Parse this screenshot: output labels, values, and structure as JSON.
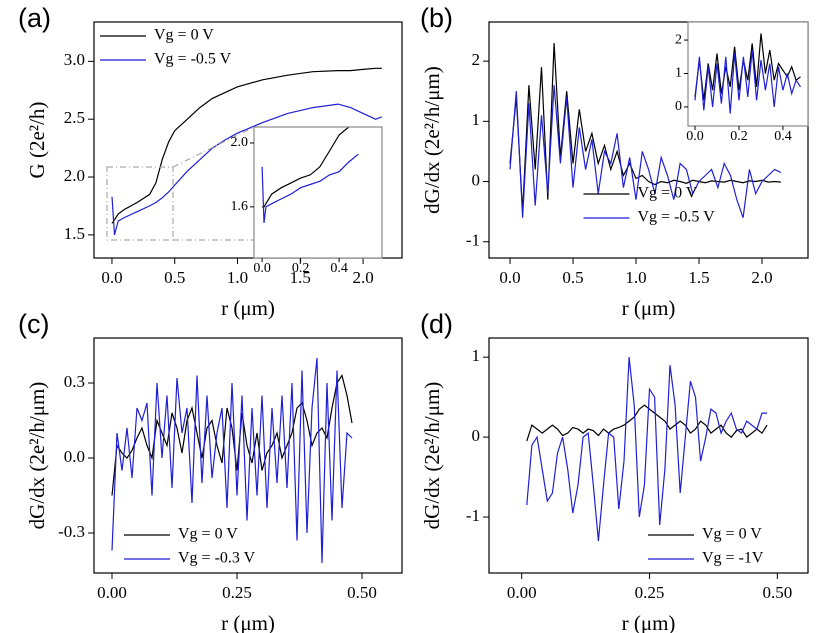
{
  "chart_data": [
    {
      "type": "line",
      "label": "(a)",
      "xlabel": "r (μm)",
      "ylabel": "G (2e²/h)",
      "xlim": [
        -0.143,
        2.31
      ],
      "ylim": [
        1.3,
        3.34
      ],
      "xticks": [
        {
          "value": 0,
          "label": "0.0"
        },
        0.5,
        {
          "value": 1,
          "label": "1.0"
        },
        1.5,
        {
          "value": 2,
          "label": "2.0"
        }
      ],
      "yticks": [
        1.5,
        {
          "value": 2,
          "label": "2.0"
        },
        2.5,
        {
          "value": 3,
          "label": "3.0"
        }
      ],
      "legend": "upper left",
      "x": [
        0,
        0.02,
        0.05,
        0.1,
        0.2,
        0.3,
        0.35,
        0.4,
        0.45,
        0.5,
        0.6,
        0.7,
        0.8,
        0.9,
        1.0,
        1.2,
        1.4,
        1.6,
        1.8,
        1.9,
        2.0,
        2.1,
        2.15
      ],
      "series": [
        {
          "name": "Vg = 0 V",
          "color": "#000000",
          "values": [
            1.6,
            1.63,
            1.68,
            1.72,
            1.78,
            1.85,
            1.95,
            2.15,
            2.3,
            2.4,
            2.5,
            2.6,
            2.68,
            2.73,
            2.78,
            2.84,
            2.88,
            2.91,
            2.92,
            2.92,
            2.93,
            2.94,
            2.94
          ]
        },
        {
          "name": "Vg = -0.5 V",
          "color": "#1f1fd6",
          "values": [
            1.83,
            1.5,
            1.62,
            1.65,
            1.7,
            1.75,
            1.78,
            1.82,
            1.87,
            1.93,
            2.05,
            2.15,
            2.25,
            2.32,
            2.38,
            2.47,
            2.55,
            2.6,
            2.63,
            2.6,
            2.55,
            2.5,
            2.52
          ]
        }
      ]
    },
    {
      "type": "line",
      "xlim": [
        -0.042,
        0.623
      ],
      "ylim": [
        1.28,
        2.1
      ],
      "xticks": [
        {
          "value": 0,
          "label": "0.0"
        },
        0.2,
        0.4
      ],
      "yticks": [
        1.6,
        {
          "value": 2,
          "label": "2.0"
        }
      ],
      "x": [
        0,
        0.01,
        0.02,
        0.05,
        0.1,
        0.15,
        0.2,
        0.25,
        0.3,
        0.35,
        0.4,
        0.45,
        0.5
      ],
      "series": [
        {
          "color": "#000000",
          "values": [
            1.6,
            1.6,
            1.62,
            1.68,
            1.72,
            1.75,
            1.78,
            1.8,
            1.85,
            1.95,
            2.05,
            2.1,
            2.12
          ]
        },
        {
          "color": "#1f1fd6",
          "values": [
            1.85,
            1.5,
            1.6,
            1.62,
            1.65,
            1.68,
            1.72,
            1.74,
            1.76,
            1.8,
            1.82,
            1.88,
            1.93
          ]
        }
      ]
    },
    {
      "type": "line",
      "label": "(b)",
      "xlabel": "r (μm)",
      "ylabel": "dG/dx   (2e²/h/μm)",
      "xlim": [
        -0.167,
        2.365
      ],
      "ylim": [
        -1.27,
        2.65
      ],
      "xticks": [
        {
          "value": 0,
          "label": "0.0"
        },
        0.5,
        {
          "value": 1,
          "label": "1.0"
        },
        1.5,
        {
          "value": 2,
          "label": "2.0"
        }
      ],
      "yticks": [
        -1,
        0,
        1,
        2
      ],
      "legend": "lower center",
      "x": [
        0,
        0.05,
        0.1,
        0.15,
        0.2,
        0.25,
        0.3,
        0.35,
        0.4,
        0.45,
        0.5,
        0.55,
        0.6,
        0.65,
        0.7,
        0.75,
        0.8,
        0.85,
        0.9,
        0.95,
        1.0,
        1.05,
        1.1,
        1.15,
        1.2,
        1.25,
        1.3,
        1.35,
        1.4,
        1.45,
        1.5,
        1.55,
        1.6,
        1.65,
        1.7,
        1.75,
        1.8,
        1.85,
        1.9,
        1.95,
        2.0,
        2.05,
        2.1,
        2.15
      ],
      "series": [
        {
          "name": "Vg = 0 V",
          "color": "#000000",
          "values": [
            0.3,
            1.4,
            -0.5,
            1.6,
            0.2,
            1.9,
            -0.3,
            2.3,
            0.4,
            1.5,
            0.3,
            1.2,
            0.5,
            0.8,
            0.3,
            0.6,
            0.2,
            0.5,
            0.1,
            0.3,
            0.05,
            0.1,
            0.0,
            -0.05,
            0.0,
            -0.02,
            0.02,
            0.0,
            -0.03,
            0.02,
            0.0,
            -0.02,
            0.01,
            0.0,
            -0.01,
            0.02,
            0.0,
            -0.02,
            0.01,
            0.0,
            0.02,
            -0.01,
            0.0,
            -0.01
          ]
        },
        {
          "name": "Vg = -0.5 V",
          "color": "#1f1fd6",
          "values": [
            0.2,
            1.5,
            -0.6,
            1.3,
            -0.4,
            1.1,
            -0.2,
            1.6,
            0.3,
            1.4,
            -0.1,
            0.9,
            0.2,
            0.7,
            -0.2,
            0.5,
            0.3,
            0.8,
            -0.1,
            0.4,
            -0.3,
            0.5,
            0.2,
            -0.2,
            0.4,
            0.1,
            -0.3,
            0.3,
            0.2,
            -0.2,
            0.0,
            0.1,
            0.2,
            -0.1,
            0.3,
            0.1,
            -0.3,
            -0.6,
            0.2,
            -0.2,
            0.0,
            0.1,
            0.2,
            0.15
          ]
        }
      ]
    },
    {
      "type": "line",
      "xlim": [
        -0.032,
        0.514
      ],
      "ylim": [
        -0.57,
        2.54
      ],
      "xticks": [
        {
          "value": 0,
          "label": "0.0"
        },
        0.2,
        0.4
      ],
      "yticks": [
        0,
        1,
        2
      ],
      "x": [
        0,
        0.02,
        0.04,
        0.06,
        0.08,
        0.1,
        0.12,
        0.14,
        0.16,
        0.18,
        0.2,
        0.22,
        0.24,
        0.26,
        0.28,
        0.3,
        0.32,
        0.34,
        0.36,
        0.38,
        0.4,
        0.42,
        0.44,
        0.46,
        0.48
      ],
      "series": [
        {
          "color": "#000000",
          "values": [
            0.3,
            1.4,
            0.2,
            1.3,
            0.5,
            1.6,
            0.4,
            1.2,
            0.6,
            1.8,
            0.5,
            1.4,
            0.8,
            1.9,
            0.6,
            2.2,
            1.0,
            1.7,
            0.8,
            1.3,
            1.1,
            0.9,
            1.2,
            0.8,
            0.9
          ]
        },
        {
          "color": "#1f1fd6",
          "values": [
            0.2,
            1.5,
            -0.1,
            1.2,
            0.0,
            1.3,
            0.1,
            1.5,
            -0.2,
            1.6,
            0.2,
            1.5,
            0.3,
            1.7,
            0.2,
            1.4,
            0.5,
            1.3,
            0.0,
            1.2,
            0.5,
            1.0,
            0.4,
            0.8,
            0.6
          ]
        }
      ]
    },
    {
      "type": "line",
      "label": "(c)",
      "xlabel": "r (μm)",
      "ylabel": "dG/dx   (2e²/h/μm)",
      "xlim": [
        -0.036,
        0.58
      ],
      "ylim": [
        -0.46,
        0.48
      ],
      "xticks": [
        {
          "value": 0,
          "label": "0.00"
        },
        0.25,
        {
          "value": 0.5,
          "label": "0.50"
        }
      ],
      "yticks": [
        -0.3,
        {
          "value": 0,
          "label": "0.0"
        },
        0.3
      ],
      "legend": "lower left",
      "x": [
        0,
        0.01,
        0.02,
        0.03,
        0.04,
        0.05,
        0.06,
        0.07,
        0.08,
        0.09,
        0.1,
        0.11,
        0.12,
        0.13,
        0.14,
        0.15,
        0.16,
        0.17,
        0.18,
        0.19,
        0.2,
        0.21,
        0.22,
        0.23,
        0.24,
        0.25,
        0.26,
        0.27,
        0.28,
        0.29,
        0.3,
        0.31,
        0.32,
        0.33,
        0.34,
        0.35,
        0.36,
        0.37,
        0.38,
        0.39,
        0.4,
        0.41,
        0.42,
        0.43,
        0.44,
        0.45,
        0.46,
        0.47,
        0.48
      ],
      "series": [
        {
          "name": "Vg = 0 V",
          "color": "#000000",
          "values": [
            -0.15,
            0.05,
            0.02,
            0.0,
            0.03,
            0.08,
            0.12,
            0.05,
            0.0,
            0.15,
            0.1,
            0.05,
            0.18,
            0.12,
            0.02,
            0.15,
            0.2,
            0.1,
            0.0,
            0.12,
            0.15,
            0.05,
            -0.02,
            0.2,
            0.12,
            -0.05,
            0.18,
            0.05,
            -0.02,
            0.1,
            -0.05,
            0.02,
            0.05,
            0.1,
            0.0,
            0.05,
            0.1,
            0.2,
            0.22,
            0.15,
            0.05,
            0.1,
            0.12,
            0.08,
            0.2,
            0.3,
            0.33,
            0.25,
            0.14
          ]
        },
        {
          "name": "Vg = -0.3 V",
          "color": "#1f1fd6",
          "values": [
            -0.37,
            0.1,
            -0.05,
            0.12,
            -0.08,
            0.2,
            0.15,
            0.22,
            -0.15,
            0.3,
            0.0,
            0.25,
            -0.12,
            0.32,
            0.1,
            0.2,
            -0.18,
            0.33,
            -0.1,
            0.25,
            -0.08,
            0.1,
            0.2,
            -0.2,
            0.3,
            -0.15,
            0.25,
            -0.25,
            0.2,
            -0.15,
            0.25,
            -0.2,
            0.2,
            -0.1,
            0.25,
            -0.12,
            0.3,
            -0.33,
            0.35,
            -0.3,
            0.2,
            0.4,
            -0.42,
            0.3,
            -0.25,
            0.35,
            -0.2,
            0.1,
            0.08
          ]
        }
      ]
    },
    {
      "type": "line",
      "label": "(d)",
      "xlabel": "r (μm)",
      "ylabel": "dG/dx   (2e²/h/μm)",
      "xlim": [
        -0.064,
        0.56
      ],
      "ylim": [
        -1.7,
        1.24
      ],
      "xticks": [
        {
          "value": 0,
          "label": "0.00"
        },
        0.25,
        {
          "value": 0.5,
          "label": "0.50"
        }
      ],
      "yticks": [
        -1,
        0,
        1
      ],
      "legend": "lower right",
      "x": [
        0.01,
        0.02,
        0.03,
        0.04,
        0.05,
        0.06,
        0.07,
        0.08,
        0.09,
        0.1,
        0.11,
        0.12,
        0.13,
        0.14,
        0.15,
        0.16,
        0.17,
        0.18,
        0.19,
        0.2,
        0.21,
        0.22,
        0.23,
        0.24,
        0.25,
        0.26,
        0.27,
        0.28,
        0.29,
        0.3,
        0.31,
        0.32,
        0.33,
        0.34,
        0.35,
        0.36,
        0.37,
        0.38,
        0.39,
        0.4,
        0.41,
        0.42,
        0.43,
        0.44,
        0.45,
        0.46,
        0.47,
        0.48
      ],
      "series": [
        {
          "name": "Vg = 0 V",
          "color": "#000000",
          "values": [
            -0.05,
            0.15,
            0.1,
            0.05,
            0.1,
            0.15,
            0.1,
            0.02,
            0.05,
            0.12,
            0.1,
            0.05,
            0.1,
            0.08,
            0.02,
            0.1,
            0.05,
            0.1,
            0.12,
            0.15,
            0.2,
            0.25,
            0.35,
            0.4,
            0.35,
            0.3,
            0.25,
            0.2,
            0.1,
            0.15,
            0.2,
            0.15,
            0.05,
            0.1,
            0.2,
            0.15,
            0.05,
            0.1,
            0.15,
            0.05,
            0.0,
            0.08,
            0.1,
            0.0,
            0.05,
            0.1,
            0.05,
            0.15
          ]
        },
        {
          "name": "Vg = -1V",
          "color": "#1f1fd6",
          "values": [
            -0.85,
            -0.1,
            0.0,
            -0.4,
            -0.8,
            -0.7,
            -0.2,
            0.0,
            -0.4,
            -0.95,
            -0.6,
            0.0,
            0.05,
            -0.6,
            -1.3,
            -0.6,
            0.05,
            0.0,
            -0.9,
            -0.3,
            1.0,
            0.4,
            -1.0,
            -0.6,
            0.6,
            0.5,
            -1.1,
            -0.4,
            0.9,
            0.4,
            -0.7,
            0.0,
            0.7,
            0.5,
            -0.3,
            0.0,
            0.35,
            0.3,
            0.05,
            0.2,
            0.3,
            0.1,
            0.05,
            0.2,
            0.15,
            0.1,
            0.3,
            0.3
          ]
        }
      ]
    }
  ]
}
